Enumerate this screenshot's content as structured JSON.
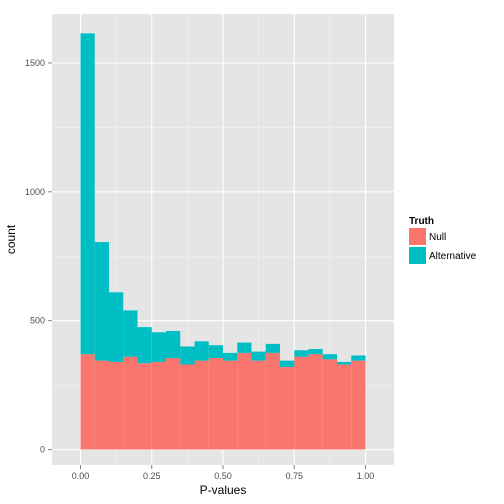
{
  "chart_data": {
    "type": "bar",
    "stacked": true,
    "xlabel": "P-values",
    "ylabel": "count",
    "xlim": [
      -0.1,
      1.1
    ],
    "ylim": [
      -60,
      1690
    ],
    "x_ticks": [
      0.0,
      0.25,
      0.5,
      0.75,
      1.0
    ],
    "x_tick_labels": [
      "0.00",
      "0.25",
      "0.50",
      "0.75",
      "1.00"
    ],
    "y_ticks": [
      0,
      500,
      1000,
      1500
    ],
    "y_tick_labels": [
      "0",
      "500",
      "1000",
      "1500"
    ],
    "grid": true,
    "background": "#e5e5e5",
    "legend": {
      "title": "Truth",
      "position": "right"
    },
    "bin_edges": [
      0.0,
      0.05,
      0.1,
      0.15,
      0.2,
      0.25,
      0.3,
      0.35,
      0.4,
      0.45,
      0.5,
      0.55,
      0.6,
      0.65,
      0.7,
      0.75,
      0.8,
      0.85,
      0.9,
      0.95,
      1.0
    ],
    "series": [
      {
        "name": "Null",
        "color": "#f8766d",
        "values": [
          370,
          345,
          340,
          360,
          335,
          340,
          355,
          330,
          345,
          355,
          345,
          375,
          345,
          375,
          320,
          360,
          370,
          350,
          330,
          345
        ]
      },
      {
        "name": "Alternative",
        "color": "#00bfc4",
        "values": [
          1245,
          460,
          270,
          180,
          140,
          115,
          105,
          70,
          75,
          50,
          30,
          40,
          35,
          35,
          25,
          25,
          20,
          20,
          10,
          20
        ]
      }
    ]
  }
}
